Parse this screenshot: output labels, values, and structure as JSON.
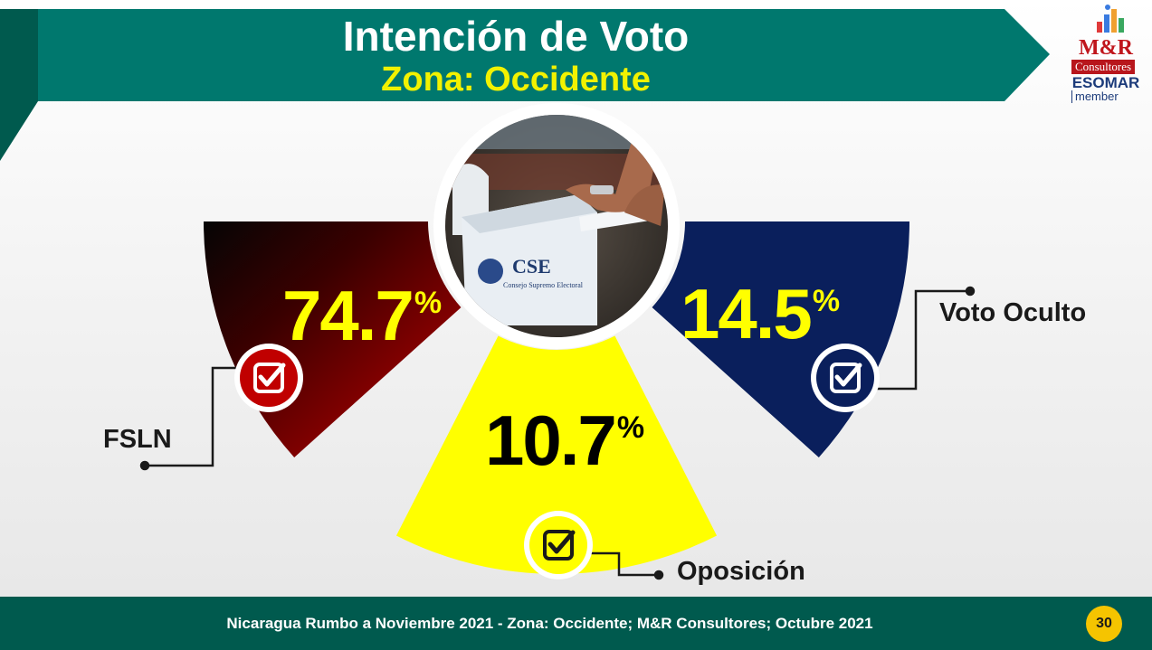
{
  "header": {
    "title": "Intención de Voto",
    "subtitle": "Zona: Occidente"
  },
  "logo": {
    "brand": "M&R",
    "consultores": "Consultores",
    "esomar": "ESOMAR",
    "member": "member"
  },
  "photo": {
    "ballot_box_text": "CSE",
    "ballot_box_caption": "Consejo Supremo Electoral"
  },
  "colors": {
    "banner": "#00786e",
    "banner_dark": "#005a4e",
    "fsln": "#c00000",
    "oposicion": "#ffff00",
    "voto_oculto": "#0a1f5c",
    "accent_yellow": "#f2f200"
  },
  "chart_data": {
    "type": "pie",
    "categories": [
      "FSLN",
      "Oposición",
      "Voto Oculto"
    ],
    "values": [
      74.7,
      10.7,
      14.5
    ],
    "value_labels": [
      "74.7",
      "10.7",
      "14.5"
    ],
    "unit": "%",
    "check_icon": "checkbox-check-icon"
  },
  "footer": {
    "text": "Nicaragua Rumbo a Noviembre 2021 - Zona: Occidente; M&R Consultores; Octubre 2021",
    "page": "30"
  }
}
